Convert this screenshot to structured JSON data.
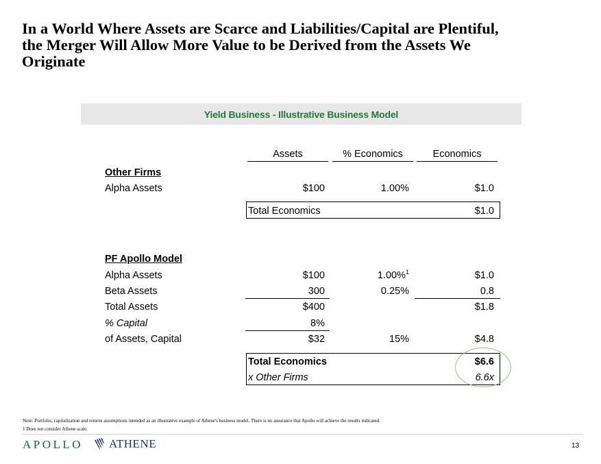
{
  "title": {
    "line1": "In a World Where Assets are Scarce and Liabilities/Capital are Plentiful,",
    "line2": "the Merger Will Allow More Value to be Derived from the Assets We",
    "line3": "Originate"
  },
  "band_title": "Yield Business - Illustrative Business Model",
  "columns": {
    "assets": "Assets",
    "pct_economics": "% Economics",
    "economics": "Economics"
  },
  "other_firms": {
    "heading": "Other Firms",
    "alpha": {
      "label": "Alpha Assets",
      "assets": "$100",
      "pct": "1.00%",
      "economics": "$1.0"
    },
    "total": {
      "label": "Total Economics",
      "value": "$1.0"
    }
  },
  "pf_apollo": {
    "heading": "PF Apollo Model",
    "alpha": {
      "label": "Alpha Assets",
      "assets": "$100",
      "pct": "1.00%",
      "footnote": "1",
      "economics": "$1.0"
    },
    "beta": {
      "label": "Beta Assets",
      "assets": "300",
      "pct": "0.25%",
      "economics": "0.8"
    },
    "total_assets": {
      "label": "Total Assets",
      "assets": "$400",
      "economics": "$1.8"
    },
    "pct_capital": {
      "label": "% Capital",
      "assets": "8%"
    },
    "capital": {
      "label": "of Assets, Capital",
      "assets": "$32",
      "pct": "15%",
      "economics": "$4.8"
    },
    "total_economics": {
      "label": "Total Economics",
      "value": "$6.6"
    },
    "multiple": {
      "label": "x Other Firms",
      "value": "6.6x"
    }
  },
  "notes": {
    "note1": "Note: Portfolio, capitalization and returns assumptions intended as an illustrative example of Athene's business model. There is no assurance that Apollo will achieve the results indicated.",
    "note2": "1 Does not consider Athene scale."
  },
  "footer": {
    "apollo": "APOLLO",
    "athene": "ATHENE",
    "page": "13"
  },
  "colors": {
    "accent_green": "#1e7a3c",
    "band_gray": "#e7e7e7",
    "circle_green": "#8fc97f",
    "athene_navy": "#1a3555"
  }
}
